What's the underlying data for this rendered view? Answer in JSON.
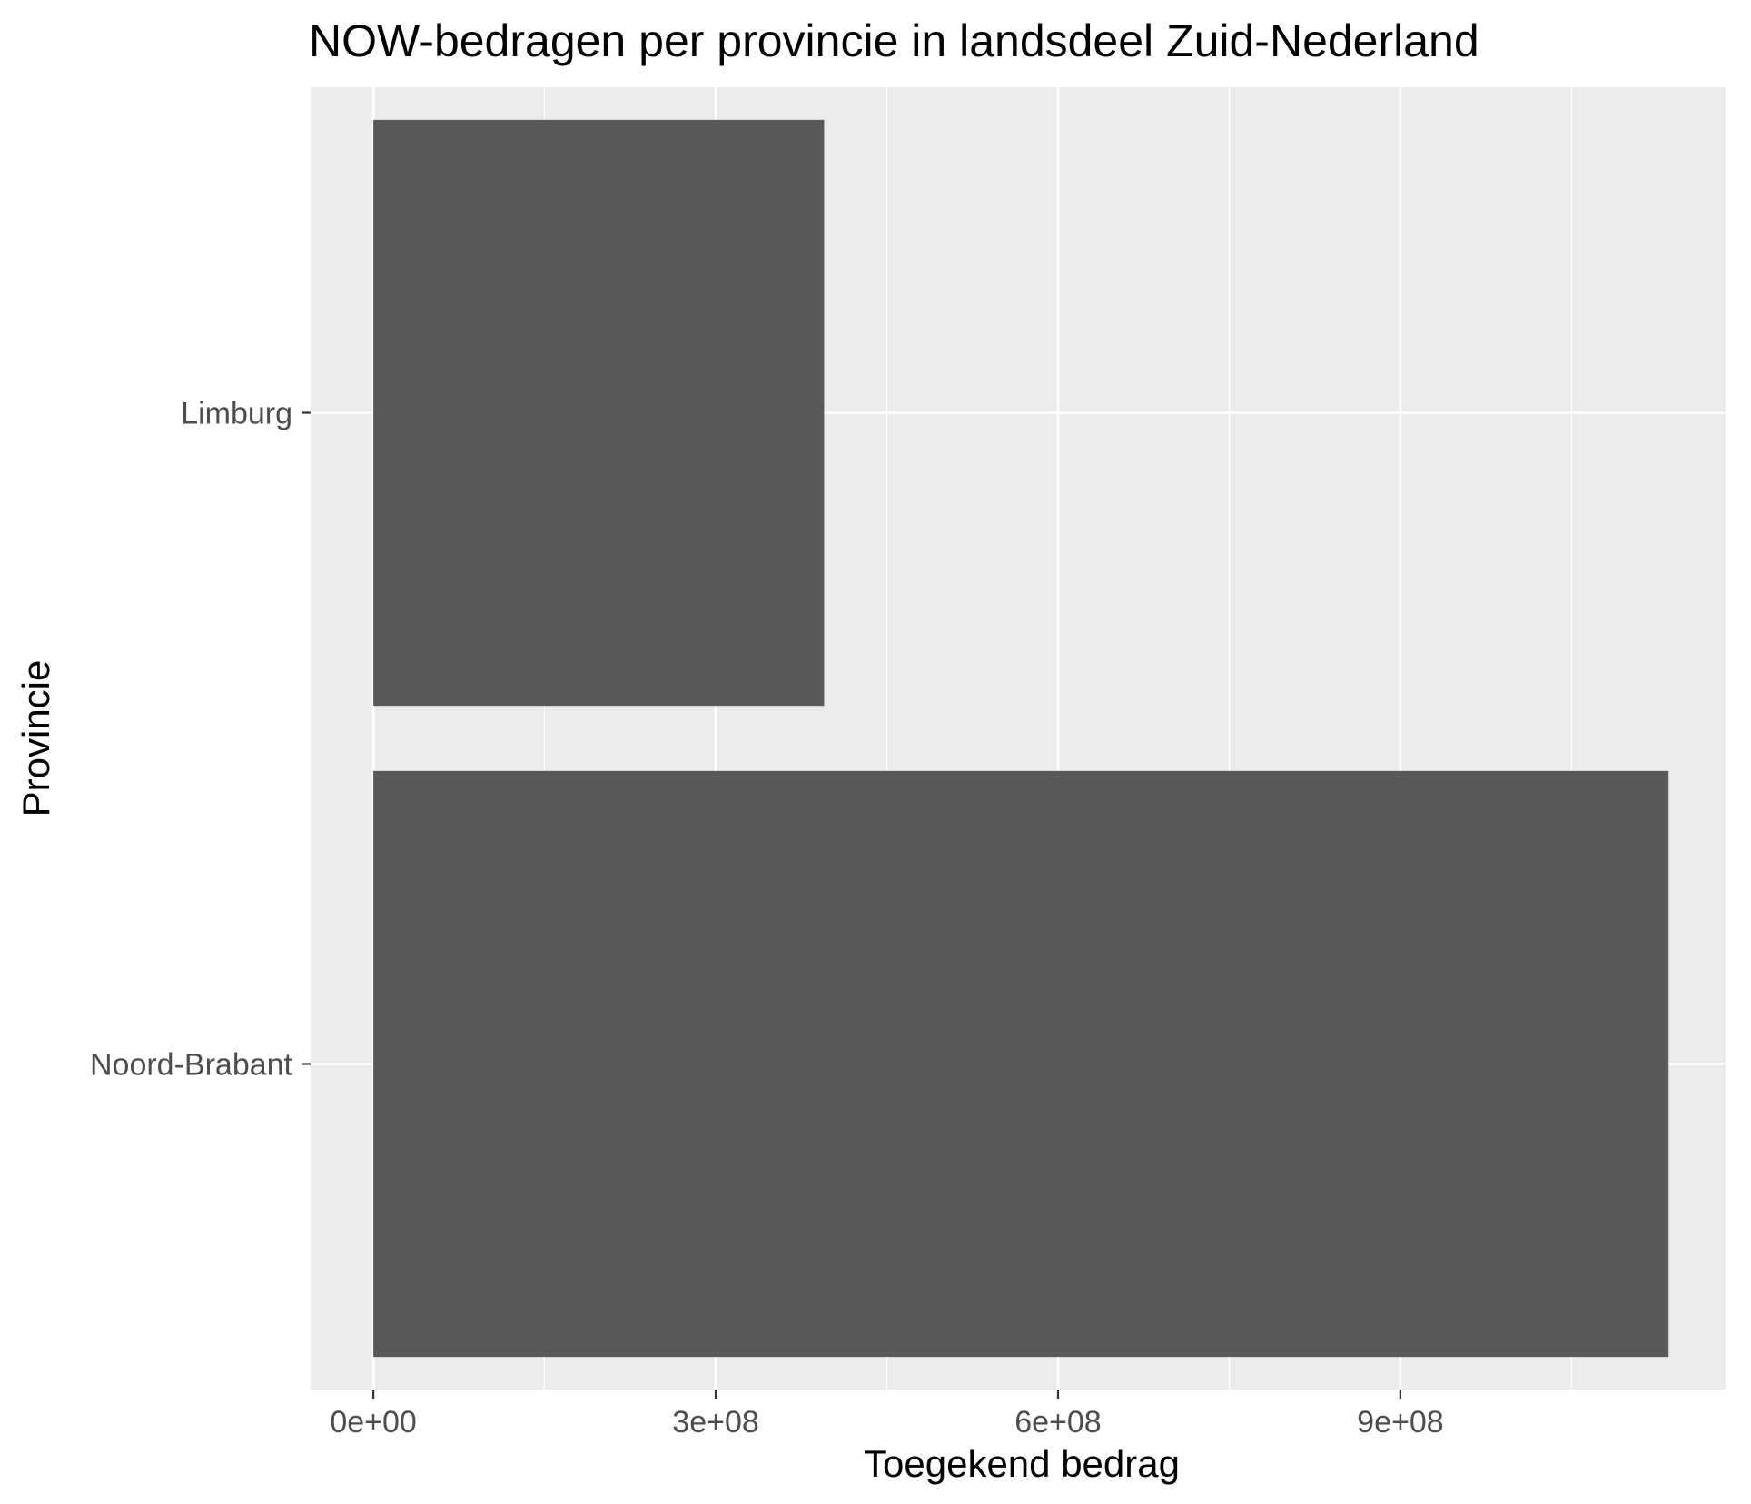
{
  "chart_data": {
    "type": "bar",
    "orientation": "horizontal",
    "title": "NOW-bedragen per provincie in landsdeel Zuid-Nederland",
    "xlabel": "Toegekend bedrag",
    "ylabel": "Provincie",
    "categories": [
      "Noord-Brabant",
      "Limburg"
    ],
    "values": [
      1135000000,
      395000000
    ],
    "xlim": [
      -55000000,
      1185000000
    ],
    "xticks": [
      0,
      300000000,
      600000000,
      900000000
    ],
    "xtick_labels": [
      "0e+00",
      "3e+08",
      "6e+08",
      "9e+08"
    ],
    "grid": true,
    "legend": "none",
    "colors": {
      "panel_background": "#ebebeb",
      "grid": "#ffffff",
      "bar": "#595959",
      "tick": "#333333",
      "tick_label": "#4d4d4d",
      "text": "#000000"
    }
  }
}
